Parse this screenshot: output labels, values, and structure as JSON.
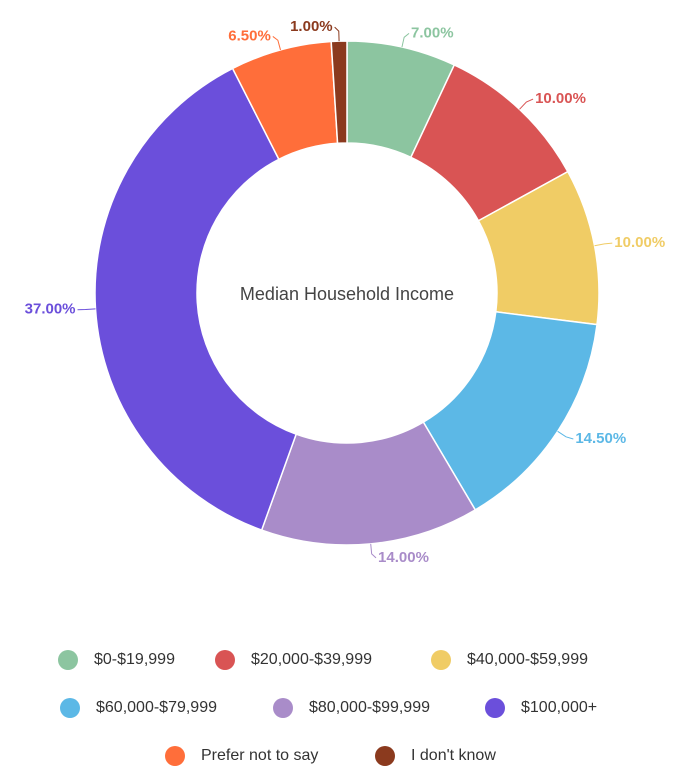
{
  "chart_data": {
    "type": "donut",
    "title": "Median Household Income",
    "categories": [
      "$0-$19,999",
      "$20,000-$39,999",
      "$40,000-$59,999",
      "$60,000-$79,999",
      "$80,000-$99,999",
      "$100,000+",
      "Prefer not to say",
      "I don't know"
    ],
    "values": [
      7,
      10,
      10,
      14.5,
      14,
      37,
      6.5,
      1
    ],
    "value_labels": [
      "7.00%",
      "10.00%",
      "10.00%",
      "14.50%",
      "14.00%",
      "37.00%",
      "6.50%",
      "1.00%"
    ],
    "colors": [
      "#8cc5a0",
      "#d95454",
      "#f0cc65",
      "#5cb8e6",
      "#a98cc9",
      "#6b4fdb",
      "#ff6e3a",
      "#8b3a1e"
    ]
  }
}
